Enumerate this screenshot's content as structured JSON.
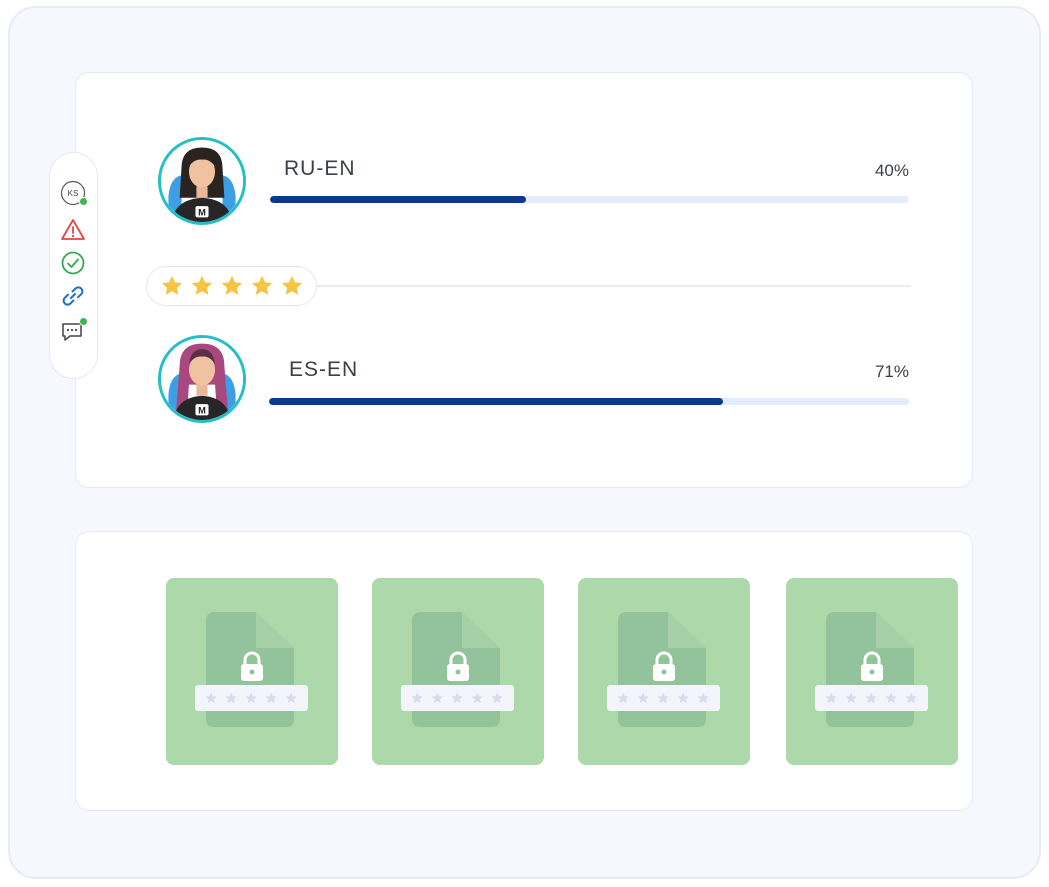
{
  "translators": [
    {
      "pair": "RU-EN",
      "progress_label": "40%",
      "progress": 0.4
    },
    {
      "pair": "ES-EN",
      "progress_label": "71%",
      "progress": 0.71
    }
  ],
  "side_rail": {
    "avatar_initials": "KS",
    "icons": [
      "user-initials-icon",
      "warning-icon",
      "check-circle-icon",
      "link-icon",
      "chat-icon"
    ]
  },
  "rating": {
    "stars": 5,
    "max": 5
  },
  "locked_files": {
    "count": 4,
    "stars_per_file": 5
  },
  "colors": {
    "progress_fill": "#0b3b88",
    "progress_track": "#e3ecfb",
    "avatar_ring": "#22bfc9",
    "star": "#f6c443",
    "file_card": "#acd8aa",
    "status_online": "#3fb34f",
    "warning": "#e0473e",
    "check": "#34a853",
    "link": "#1f6fd1"
  }
}
